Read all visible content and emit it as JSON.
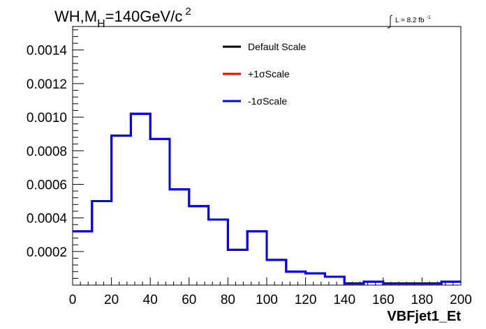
{
  "chart_data": {
    "type": "line",
    "title": "WH,M_H=140GeV/c^2",
    "title_parts": {
      "main": "WH,M",
      "sub": "H",
      "rest": "=140GeV/c",
      "sup": "2"
    },
    "lumi_label": {
      "main": "L = 8.2 fb",
      "sup": "-1"
    },
    "xlabel": "VBFjet1_Et",
    "ylabel": "",
    "xlim": [
      0,
      200
    ],
    "ylim": [
      0,
      0.00154
    ],
    "x_ticks": [
      "0",
      "20",
      "40",
      "60",
      "80",
      "100",
      "120",
      "140",
      "160",
      "180",
      "200"
    ],
    "y_ticks": [
      "0.0002",
      "0.0004",
      "0.0006",
      "0.0008",
      "0.0010",
      "0.0012",
      "0.0014"
    ],
    "bin_edges": [
      0,
      10,
      20,
      30,
      40,
      50,
      60,
      70,
      80,
      90,
      100,
      110,
      120,
      130,
      140,
      150,
      160,
      170,
      180,
      190,
      200
    ],
    "series": [
      {
        "name": "Default Scale",
        "color": "#000000",
        "values": [
          0.00032,
          0.0005,
          0.00089,
          0.00102,
          0.00087,
          0.00057,
          0.00047,
          0.00039,
          0.00021,
          0.00032,
          0.00015,
          8e-05,
          7e-05,
          5e-05,
          1e-05,
          2e-05,
          1e-05,
          1e-05,
          1e-05,
          2e-05
        ]
      },
      {
        "name": "+1σScale",
        "color": "#ff0000",
        "values": [
          0.00032,
          0.0005,
          0.00089,
          0.00102,
          0.00087,
          0.00057,
          0.00047,
          0.00039,
          0.00021,
          0.00032,
          0.00015,
          8e-05,
          7e-05,
          5e-05,
          1e-05,
          2e-05,
          1e-05,
          1e-05,
          1e-05,
          2e-05
        ]
      },
      {
        "name": "-1σScale",
        "color": "#0000ff",
        "values": [
          0.00032,
          0.0005,
          0.00089,
          0.00102,
          0.00087,
          0.00057,
          0.00047,
          0.00039,
          0.00021,
          0.00032,
          0.00015,
          8e-05,
          7e-05,
          5e-05,
          1e-05,
          2e-05,
          1e-05,
          1e-05,
          1e-05,
          2e-05
        ]
      }
    ],
    "legend": [
      "Default Scale",
      "+1σScale",
      "-1σScale"
    ],
    "legend_position": "top-center",
    "grid": false
  }
}
